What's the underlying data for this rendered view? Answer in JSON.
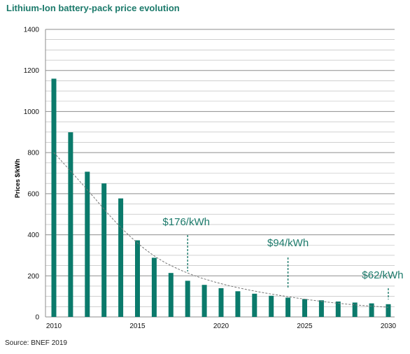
{
  "title": "Lithium-Ion battery-pack price evolution",
  "source": "Source: BNEF 2019",
  "colors": {
    "title": "#1c7a6b",
    "bar": "#0b7a6b",
    "grid": "#b4b4b4",
    "trend": "#777777",
    "callout": "#1c7a6b"
  },
  "chart_data": {
    "type": "bar",
    "title": "Lithium-Ion battery-pack price evolution",
    "ylabel": "Prices $/kWh",
    "xlabel": "",
    "ylim": [
      0,
      1400
    ],
    "y_ticks": [
      0,
      200,
      400,
      600,
      800,
      1000,
      1200,
      1400
    ],
    "x_ticks": [
      2010,
      2015,
      2020,
      2025,
      2030
    ],
    "grid": "horizontal",
    "categories": [
      2010,
      2011,
      2012,
      2013,
      2014,
      2015,
      2016,
      2017,
      2018,
      2019,
      2020,
      2021,
      2022,
      2023,
      2024,
      2025,
      2026,
      2027,
      2028,
      2029,
      2030
    ],
    "values": [
      1160,
      899,
      707,
      650,
      577,
      373,
      288,
      214,
      176,
      156,
      140,
      125,
      113,
      103,
      94,
      87,
      81,
      75,
      70,
      66,
      62
    ],
    "trendline": {
      "style": "dashed",
      "x": [
        2010,
        2012,
        2014,
        2016,
        2018,
        2020,
        2022,
        2024,
        2026,
        2028,
        2030
      ],
      "values": [
        800,
        620,
        430,
        290,
        210,
        160,
        125,
        98,
        75,
        58,
        47
      ]
    },
    "annotations": [
      {
        "text": "$176/kWh",
        "x": 2018,
        "y": 176
      },
      {
        "text": "$94/kWh",
        "x": 2024,
        "y": 94
      },
      {
        "text": "$62/kWh",
        "x": 2030,
        "y": 62
      }
    ]
  }
}
